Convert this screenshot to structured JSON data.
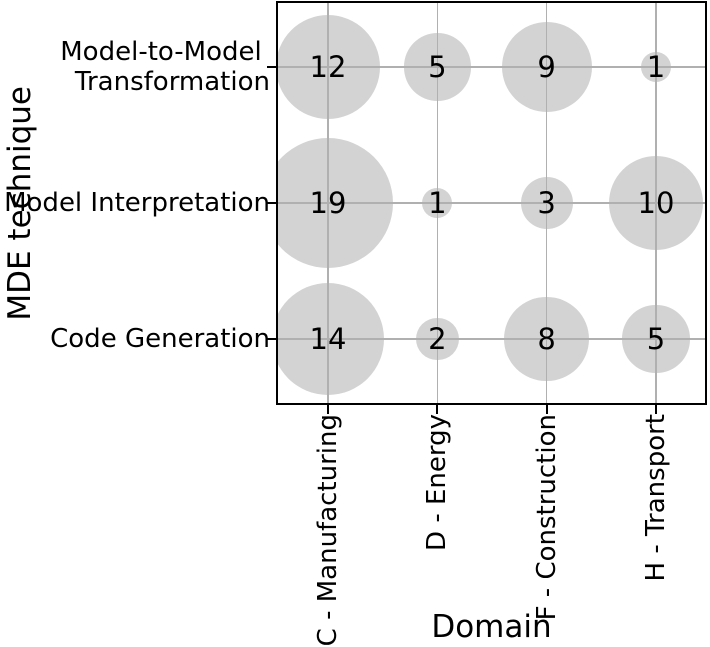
{
  "chart_data": {
    "type": "scatter",
    "subtype": "bubble-grid",
    "title": "",
    "xlabel": "Domain",
    "ylabel": "MDE technique",
    "x_categories": [
      "C - Manufacturing",
      "D - Energy",
      "F - Construction",
      "H - Transport"
    ],
    "y_categories": [
      "Model-to-Model Transformation",
      "Model Interpretation",
      "Code Generation"
    ],
    "y_tick_display_lines": [
      [
        "Model-to-Model ",
        "Transformation"
      ],
      [
        "Model Interpretation"
      ],
      [
        "Code Generation"
      ]
    ],
    "values": [
      [
        12,
        5,
        9,
        1
      ],
      [
        19,
        1,
        3,
        10
      ],
      [
        14,
        2,
        8,
        5
      ]
    ],
    "size_encoding": "bubble area proportional to value",
    "grid": true,
    "legend": "none",
    "colors": {
      "bubble_fill": "#d3d3d3",
      "gridline": "#b0b0b0",
      "axis": "#000000",
      "text": "#000000",
      "background": "#ffffff"
    }
  }
}
